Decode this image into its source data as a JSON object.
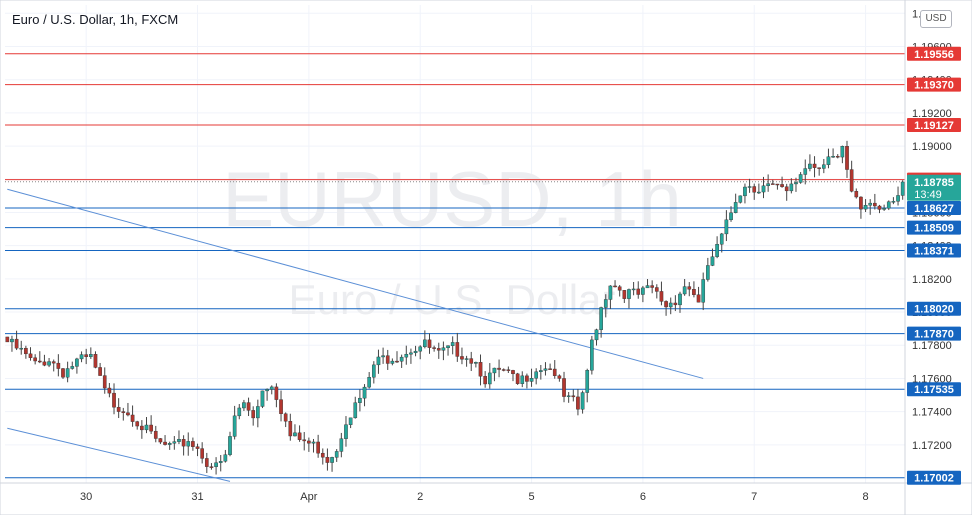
{
  "header": {
    "symbol_title": "Euro / U.S. Dollar, 1h, FXCM",
    "currency_button": "USD"
  },
  "watermark": {
    "symbol": "EURUSD, 1h",
    "description": "Euro / U.S. Dollar"
  },
  "colors": {
    "bull": "#26a69a",
    "bear": "#b2362f",
    "resistance": "#e53935",
    "support": "#1565c0",
    "trend": "#5b8fd6",
    "axis_text": "#333333"
  },
  "chart_data": {
    "type": "candlestick",
    "title": "Euro / U.S. Dollar, 1h, FXCM",
    "ylim": [
      1.1697,
      1.1985
    ],
    "y_ticks": [
      "1.17200",
      "1.17400",
      "1.17600",
      "1.17800",
      "1.18000",
      "1.18200",
      "1.18400",
      "1.18600",
      "1.18800",
      "1.19000",
      "1.19200",
      "1.19400",
      "1.19600",
      "1.19800"
    ],
    "x_labels": [
      {
        "label": "30",
        "bar": 17
      },
      {
        "label": "31",
        "bar": 41
      },
      {
        "label": "Apr",
        "bar": 65
      },
      {
        "label": "2",
        "bar": 89
      },
      {
        "label": "5",
        "bar": 113
      },
      {
        "label": "6",
        "bar": 137
      },
      {
        "label": "7",
        "bar": 161
      },
      {
        "label": "8",
        "bar": 185
      }
    ],
    "resistance_levels": [
      "1.19556",
      "1.19370",
      "1.19127",
      "1.18798"
    ],
    "support_levels": [
      "1.18627",
      "1.18509",
      "1.18371",
      "1.18020",
      "1.17870",
      "1.17535",
      "1.17002"
    ],
    "current_price": {
      "label": "1.18785",
      "timer": "13:49"
    },
    "trend_lines": [
      {
        "from": [
          0,
          1.1874
        ],
        "to": [
          150,
          1.176
        ]
      },
      {
        "from": [
          0,
          1.173
        ],
        "to": [
          48,
          1.1698
        ]
      }
    ],
    "close_path": [
      [
        0,
        1.1782
      ],
      [
        3,
        1.1776
      ],
      [
        6,
        1.1768
      ],
      [
        9,
        1.1772
      ],
      [
        12,
        1.1764
      ],
      [
        15,
        1.177
      ],
      [
        18,
        1.1772
      ],
      [
        21,
        1.1752
      ],
      [
        23,
        1.1745
      ],
      [
        25,
        1.1742
      ],
      [
        27,
        1.1738
      ],
      [
        30,
        1.1728
      ],
      [
        33,
        1.172
      ],
      [
        36,
        1.1718
      ],
      [
        39,
        1.1723
      ],
      [
        41,
        1.1718
      ],
      [
        43,
        1.171
      ],
      [
        45,
        1.1706
      ],
      [
        47,
        1.1712
      ],
      [
        49,
        1.1737
      ],
      [
        51,
        1.1745
      ],
      [
        53,
        1.1738
      ],
      [
        55,
        1.1753
      ],
      [
        57,
        1.1758
      ],
      [
        59,
        1.1742
      ],
      [
        61,
        1.1725
      ],
      [
        64,
        1.1722
      ],
      [
        67,
        1.1718
      ],
      [
        69,
        1.1712
      ],
      [
        71,
        1.1718
      ],
      [
        73,
        1.1736
      ],
      [
        75,
        1.1743
      ],
      [
        77,
        1.1752
      ],
      [
        79,
        1.1768
      ],
      [
        81,
        1.1772
      ],
      [
        84,
        1.1774
      ],
      [
        87,
        1.1778
      ],
      [
        90,
        1.178
      ],
      [
        93,
        1.1774
      ],
      [
        96,
        1.1778
      ],
      [
        99,
        1.1774
      ],
      [
        101,
        1.177
      ],
      [
        103,
        1.176
      ],
      [
        106,
        1.1764
      ],
      [
        108,
        1.1762
      ],
      [
        110,
        1.1756
      ],
      [
        112,
        1.1762
      ],
      [
        114,
        1.1766
      ],
      [
        116,
        1.1768
      ],
      [
        118,
        1.1764
      ],
      [
        120,
        1.1748
      ],
      [
        122,
        1.1745
      ],
      [
        123,
        1.1741
      ],
      [
        125,
        1.1762
      ],
      [
        126,
        1.1782
      ],
      [
        128,
        1.1803
      ],
      [
        130,
        1.1818
      ],
      [
        133,
        1.1812
      ],
      [
        136,
        1.181
      ],
      [
        139,
        1.1814
      ],
      [
        142,
        1.1804
      ],
      [
        144,
        1.1808
      ],
      [
        146,
        1.1816
      ],
      [
        148,
        1.1812
      ],
      [
        149,
        1.1804
      ],
      [
        151,
        1.1828
      ],
      [
        153,
        1.1838
      ],
      [
        155,
        1.1852
      ],
      [
        157,
        1.1868
      ],
      [
        159,
        1.1878
      ],
      [
        161,
        1.1874
      ],
      [
        163,
        1.1878
      ],
      [
        166,
        1.1874
      ],
      [
        168,
        1.1871
      ],
      [
        170,
        1.1878
      ],
      [
        171,
        1.1884
      ],
      [
        173,
        1.189
      ],
      [
        175,
        1.1888
      ],
      [
        177,
        1.1896
      ],
      [
        179,
        1.1892
      ],
      [
        180,
        1.1896
      ],
      [
        181,
        1.1884
      ],
      [
        182,
        1.187
      ],
      [
        184,
        1.1862
      ],
      [
        186,
        1.1866
      ],
      [
        188,
        1.1864
      ],
      [
        190,
        1.1868
      ],
      [
        192,
        1.1872
      ],
      [
        193,
        1.1878
      ]
    ]
  }
}
